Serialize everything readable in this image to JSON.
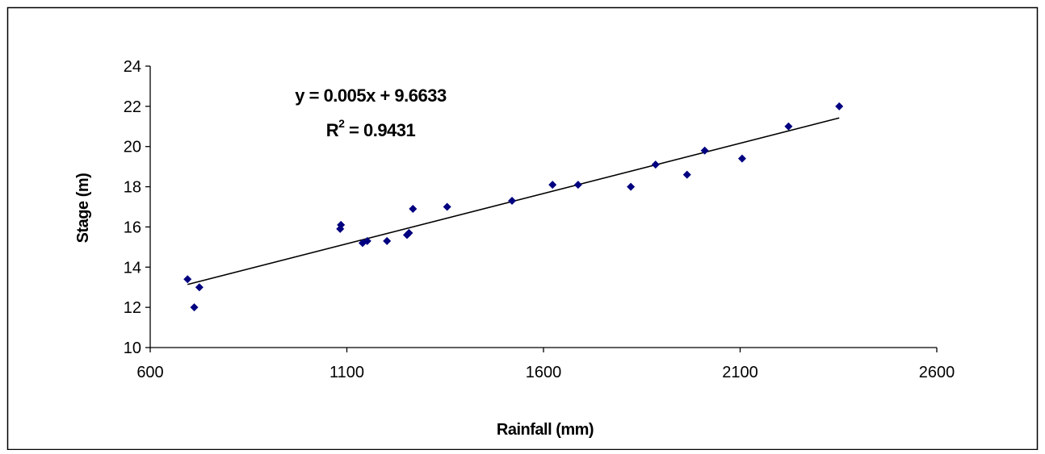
{
  "chart_data": {
    "type": "scatter",
    "xlabel": "Rainfall (mm)",
    "ylabel": "Stage (m)",
    "xlim": [
      600,
      2600
    ],
    "ylim": [
      10,
      24
    ],
    "xticks": [
      600,
      1100,
      1600,
      2100,
      2600
    ],
    "yticks": [
      10,
      12,
      14,
      16,
      18,
      20,
      22,
      24
    ],
    "grid": false,
    "legend": "none",
    "marker": "diamond",
    "marker_color": "#000080",
    "series": [
      {
        "points": [
          {
            "x": 695,
            "y": 13.4
          },
          {
            "x": 712,
            "y": 12.0
          },
          {
            "x": 725,
            "y": 13.0
          },
          {
            "x": 1083,
            "y": 15.9
          },
          {
            "x": 1085,
            "y": 16.1
          },
          {
            "x": 1140,
            "y": 15.2
          },
          {
            "x": 1152,
            "y": 15.3
          },
          {
            "x": 1202,
            "y": 15.3
          },
          {
            "x": 1253,
            "y": 15.6
          },
          {
            "x": 1258,
            "y": 15.7
          },
          {
            "x": 1268,
            "y": 16.9
          },
          {
            "x": 1355,
            "y": 17.0
          },
          {
            "x": 1520,
            "y": 17.3
          },
          {
            "x": 1623,
            "y": 18.1
          },
          {
            "x": 1688,
            "y": 18.1
          },
          {
            "x": 1822,
            "y": 18.0
          },
          {
            "x": 1885,
            "y": 19.1
          },
          {
            "x": 1965,
            "y": 18.6
          },
          {
            "x": 2010,
            "y": 19.8
          },
          {
            "x": 2105,
            "y": 19.4
          },
          {
            "x": 2223,
            "y": 21.0
          },
          {
            "x": 2352,
            "y": 22.0
          }
        ]
      }
    ],
    "trendline": {
      "type": "linear",
      "slope": 0.005,
      "intercept": 9.6633,
      "x_range": [
        695,
        2352
      ],
      "color": "#000000"
    },
    "annotations": {
      "equation": "y = 0.005x + 9.6633",
      "r2_prefix": "R",
      "r2_superscript": "2",
      "r2_value": " = 0.9431"
    }
  }
}
